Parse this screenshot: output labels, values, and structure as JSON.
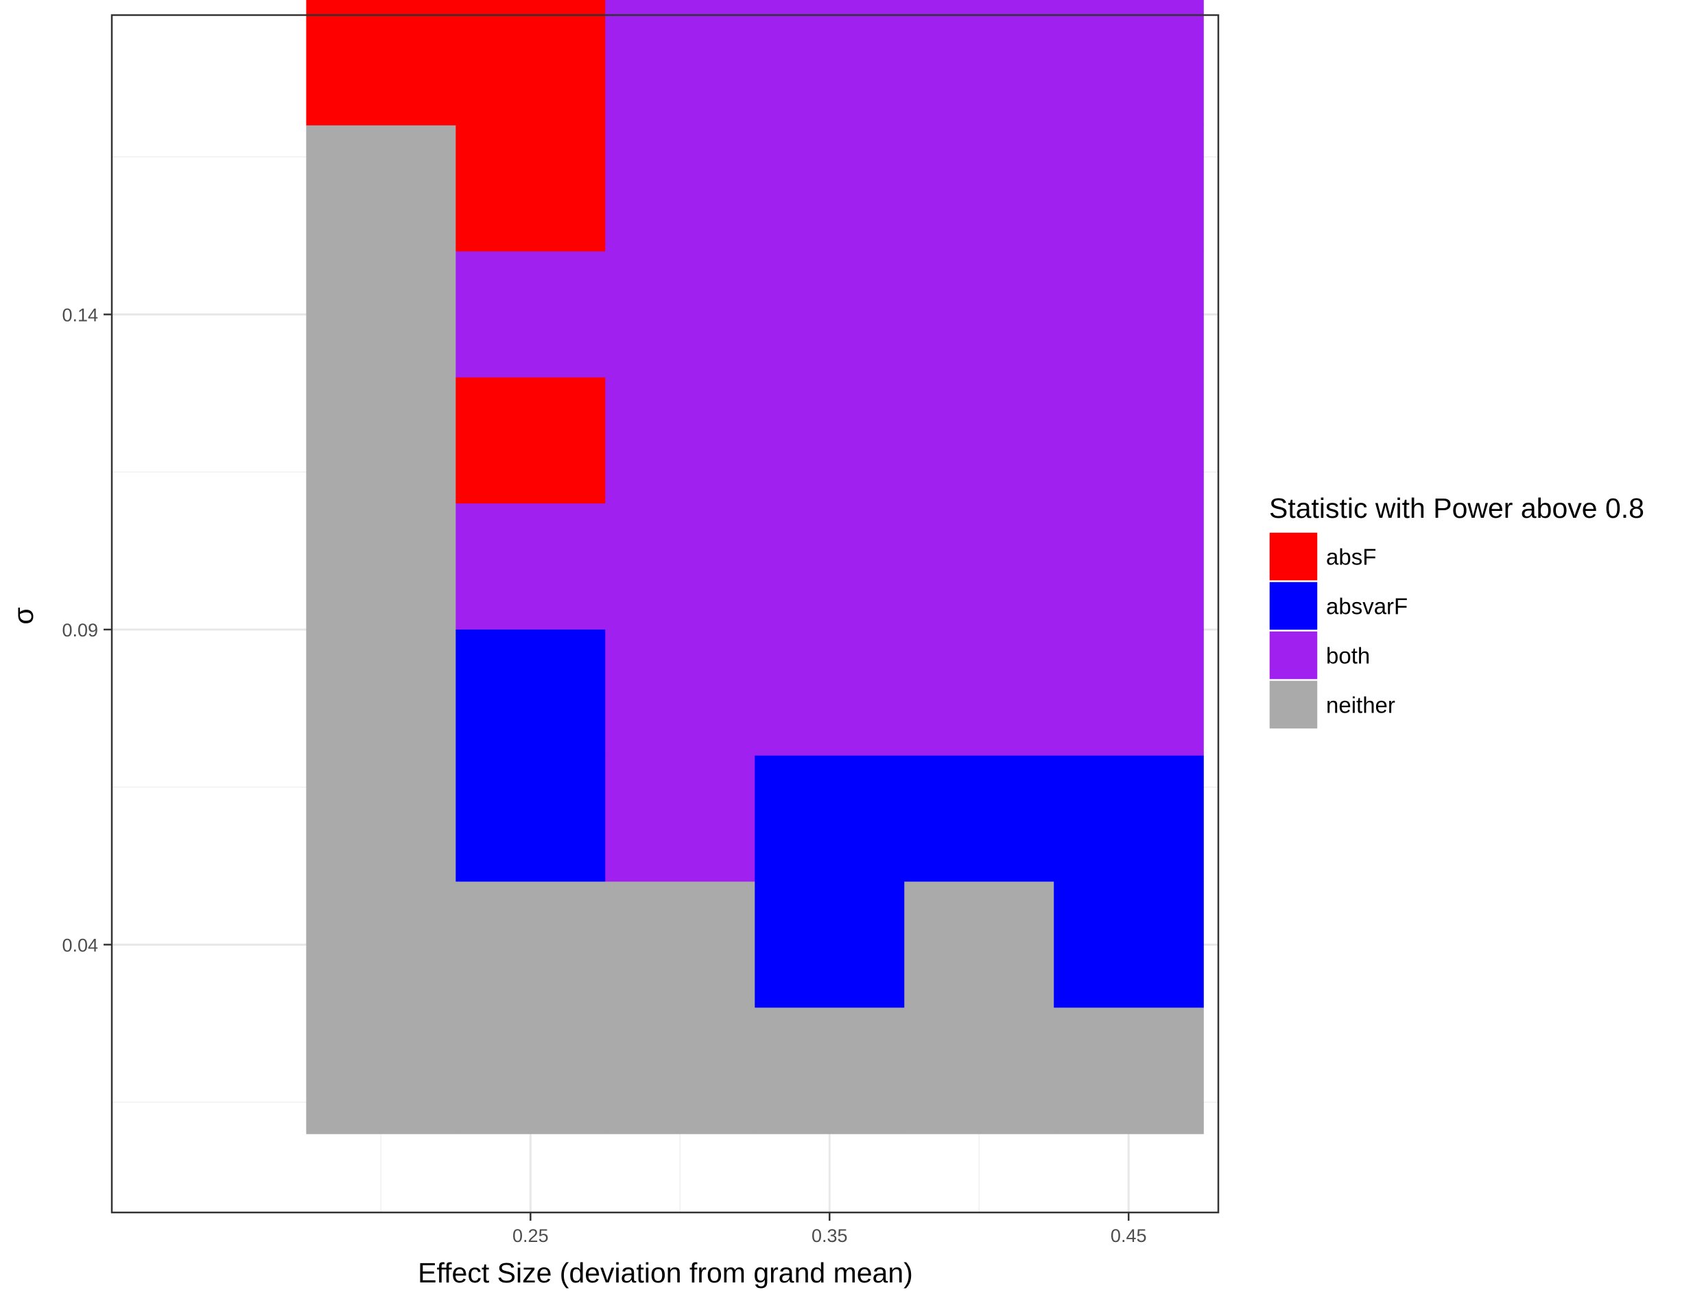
{
  "chart_data": {
    "type": "heatmap",
    "xlabel": "Effect Size (deviation from grand mean)",
    "ylabel": "σ",
    "x_ticks": [
      "0.25",
      "0.35",
      "0.45"
    ],
    "y_ticks": [
      "0.04",
      "0.09",
      "0.14"
    ],
    "x_values": [
      0.2,
      0.25,
      0.3,
      0.35,
      0.4,
      0.45
    ],
    "y_values": [
      0.02,
      0.04,
      0.06,
      0.08,
      0.1,
      0.12,
      0.14,
      0.16,
      0.18
    ],
    "xlim": [
      0.11,
      0.48
    ],
    "ylim": [
      -0.0025,
      0.1875
    ],
    "grid": true,
    "legend": {
      "title": "Statistic with Power above 0.8",
      "position": "right",
      "entries": [
        {
          "label": "absF",
          "color": "#FF0000"
        },
        {
          "label": "absvarF",
          "color": "#0000FF"
        },
        {
          "label": "both",
          "color": "#A020F0"
        },
        {
          "label": "neither",
          "color": "#AAAAAA"
        }
      ]
    },
    "cells_by_row": [
      {
        "y": 0.18,
        "values": [
          "absF",
          "absF",
          "both",
          "both",
          "both",
          "both"
        ]
      },
      {
        "y": 0.16,
        "values": [
          "neither",
          "absF",
          "both",
          "both",
          "both",
          "both"
        ]
      },
      {
        "y": 0.14,
        "values": [
          "neither",
          "both",
          "both",
          "both",
          "both",
          "both"
        ]
      },
      {
        "y": 0.12,
        "values": [
          "neither",
          "absF",
          "both",
          "both",
          "both",
          "both"
        ]
      },
      {
        "y": 0.1,
        "values": [
          "neither",
          "both",
          "both",
          "both",
          "both",
          "both"
        ]
      },
      {
        "y": 0.08,
        "values": [
          "neither",
          "absvarF",
          "both",
          "both",
          "both",
          "both"
        ]
      },
      {
        "y": 0.06,
        "values": [
          "neither",
          "absvarF",
          "both",
          "absvarF",
          "absvarF",
          "absvarF"
        ]
      },
      {
        "y": 0.04,
        "values": [
          "neither",
          "neither",
          "neither",
          "absvarF",
          "neither",
          "absvarF"
        ]
      },
      {
        "y": 0.02,
        "values": [
          "neither",
          "neither",
          "neither",
          "neither",
          "neither",
          "neither"
        ]
      }
    ]
  }
}
